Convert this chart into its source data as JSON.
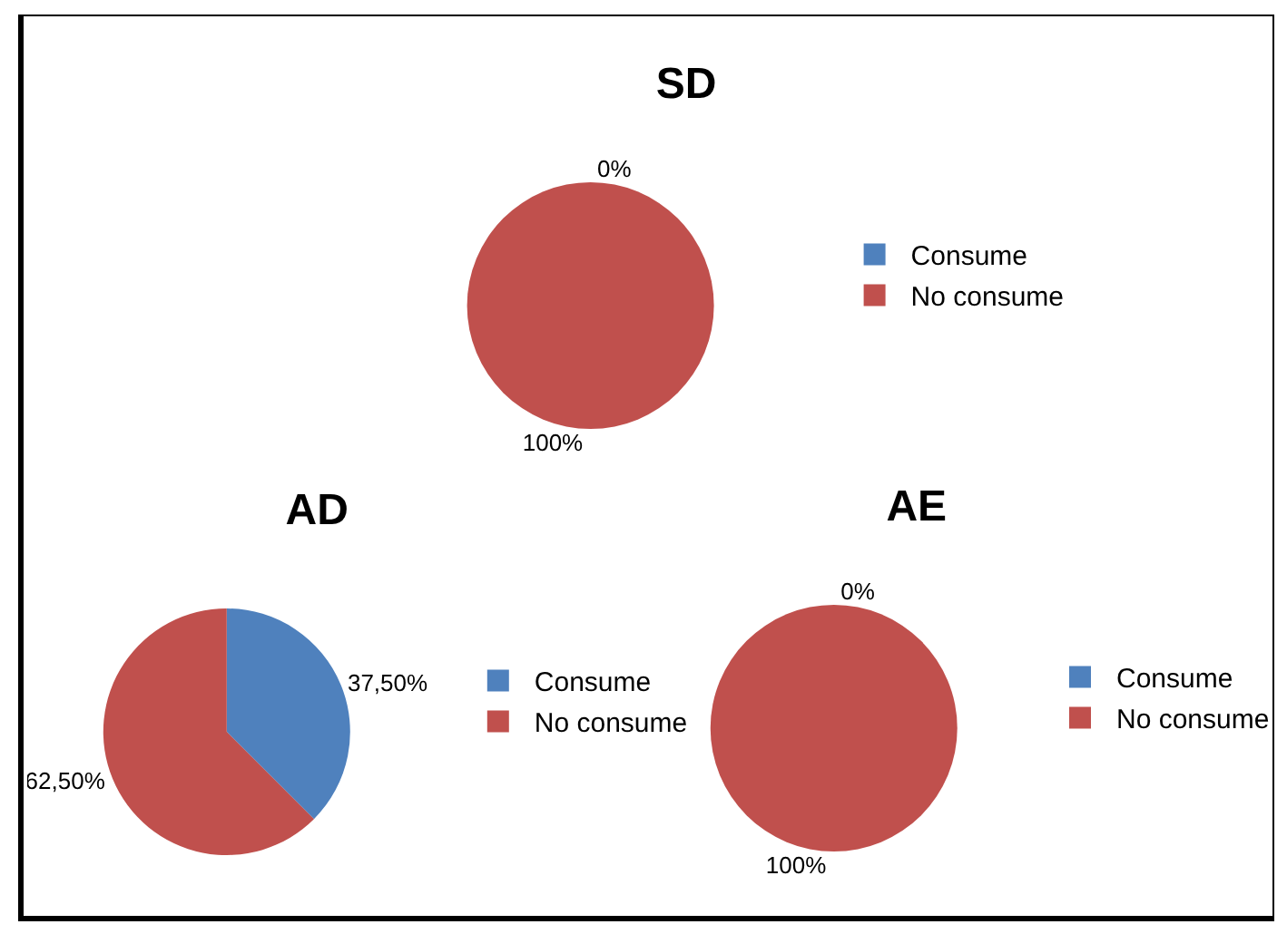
{
  "chart_data": [
    {
      "type": "pie",
      "title": "SD",
      "categories": [
        "Consume",
        "No consume"
      ],
      "values": [
        0,
        100
      ],
      "colors": [
        "#4f81bd",
        "#c0504d"
      ],
      "value_labels": [
        "0%",
        "100%"
      ],
      "legend": "right"
    },
    {
      "type": "pie",
      "title": "AD",
      "categories": [
        "Consume",
        "No consume"
      ],
      "values": [
        37.5,
        62.5
      ],
      "colors": [
        "#4f81bd",
        "#c0504d"
      ],
      "value_labels": [
        "37,50%",
        "62,50%"
      ],
      "legend": "right"
    },
    {
      "type": "pie",
      "title": "AE",
      "categories": [
        "Consume",
        "No consume"
      ],
      "values": [
        0,
        100
      ],
      "colors": [
        "#4f81bd",
        "#c0504d"
      ],
      "value_labels": [
        "0%",
        "100%"
      ],
      "legend": "right"
    }
  ]
}
